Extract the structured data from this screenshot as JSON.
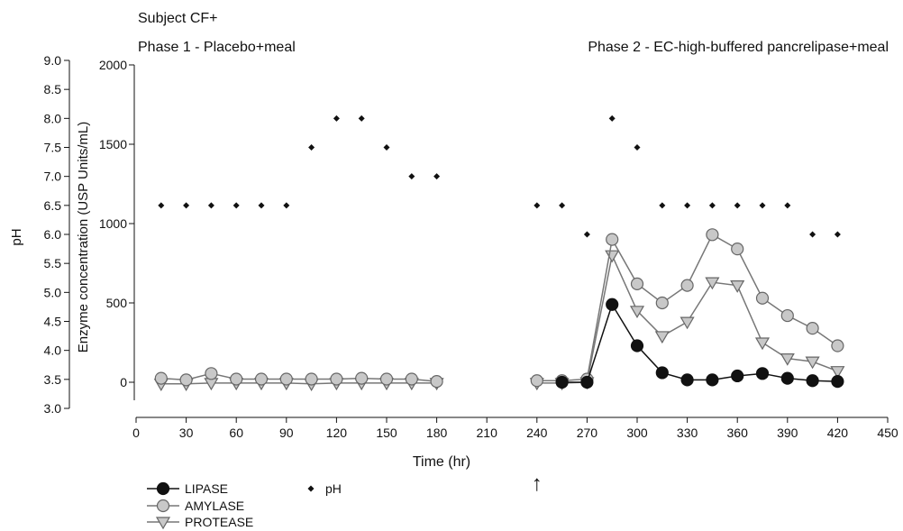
{
  "chart_data": {
    "type": "line",
    "title": "Subject CF+",
    "phase_labels": [
      "Phase 1 - Placebo+meal",
      "Phase 2 - EC-high-buffered pancrelipase+meal"
    ],
    "xlabel": "Time (hr)",
    "ylabel_ph": "pH",
    "ylabel_enzyme": "Enzyme concentration (USP Units/mL)",
    "xlim": [
      0,
      450
    ],
    "x_ticks": [
      0,
      30,
      60,
      90,
      120,
      150,
      180,
      210,
      240,
      270,
      300,
      330,
      360,
      390,
      420,
      450
    ],
    "ph_lim": [
      3.0,
      9.0
    ],
    "ph_ticks": [
      "3.0",
      "3.5",
      "4.0",
      "4.5",
      "5.0",
      "5.5",
      "6.0",
      "6.5",
      "7.0",
      "7.5",
      "8.0",
      "8.5",
      "9.0"
    ],
    "enzyme_lim": [
      0,
      2000
    ],
    "enzyme_ticks": [
      "0",
      "500",
      "1000",
      "1500",
      "2000"
    ],
    "arrow_at": 240,
    "arrow_glyph": "↑",
    "series": [
      {
        "name": "LIPASE",
        "axis": "enzyme",
        "marker": "circle",
        "color": "#111111",
        "x": [
          255,
          270,
          285,
          300,
          315,
          330,
          345,
          360,
          375,
          390,
          405,
          420
        ],
        "y": [
          0,
          0,
          490,
          230,
          60,
          15,
          15,
          40,
          55,
          25,
          10,
          5
        ]
      },
      {
        "name": "AMYLASE",
        "axis": "enzyme",
        "marker": "circle",
        "color": "#777777",
        "segments": [
          {
            "x": [
              15,
              30,
              45,
              60,
              75,
              90,
              105,
              120,
              135,
              150,
              165,
              180
            ],
            "y": [
              25,
              15,
              55,
              20,
              20,
              20,
              20,
              20,
              25,
              20,
              20,
              5
            ]
          },
          {
            "x": [
              240,
              255,
              270,
              285,
              300,
              315,
              330,
              345,
              360,
              375,
              390,
              405,
              420
            ],
            "y": [
              10,
              10,
              20,
              900,
              620,
              500,
              610,
              930,
              840,
              530,
              420,
              340,
              230
            ]
          }
        ]
      },
      {
        "name": "PROTEASE",
        "axis": "enzyme",
        "marker": "triangle",
        "color": "#777777",
        "segments": [
          {
            "x": [
              15,
              30,
              45,
              60,
              75,
              90,
              105,
              120,
              135,
              150,
              165,
              180
            ],
            "y": [
              -10,
              -10,
              -5,
              -5,
              -5,
              -5,
              -10,
              -5,
              -5,
              -5,
              -5,
              -5
            ]
          },
          {
            "x": [
              240,
              255,
              270,
              285,
              300,
              315,
              330,
              345,
              360,
              375,
              390,
              405,
              420
            ],
            "y": [
              -5,
              -5,
              0,
              800,
              450,
              290,
              380,
              630,
              610,
              250,
              150,
              130,
              70
            ]
          }
        ]
      },
      {
        "name": "pH",
        "axis": "ph",
        "marker": "diamond",
        "color": "#111111",
        "x": [
          15,
          30,
          45,
          60,
          75,
          90,
          105,
          120,
          135,
          150,
          165,
          180,
          240,
          255,
          270,
          285,
          300,
          315,
          330,
          345,
          360,
          375,
          390,
          405,
          420
        ],
        "y": [
          6.5,
          6.5,
          6.5,
          6.5,
          6.5,
          6.5,
          7.5,
          8.0,
          8.0,
          7.5,
          7.0,
          7.0,
          6.5,
          6.5,
          6.0,
          8.0,
          7.5,
          6.5,
          6.5,
          6.5,
          6.5,
          6.5,
          6.5,
          6.0,
          6.0
        ]
      }
    ],
    "legend_placement": "bottom-left"
  }
}
